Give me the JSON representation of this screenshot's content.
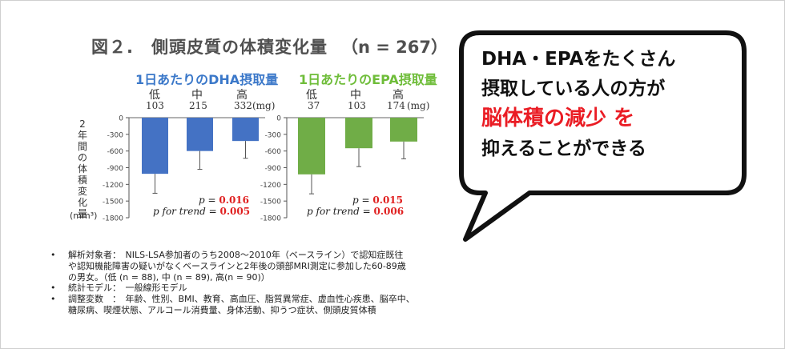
{
  "figure": {
    "title": "図２.　側頭皮質の体積変化量",
    "n_label": "（n = 267）"
  },
  "y_axis": {
    "label_chars": [
      "2",
      "年",
      "間",
      "の",
      "体",
      "積",
      "変",
      "化",
      "量"
    ],
    "unit": "(mm³)",
    "ticks": [
      "0",
      "-300",
      "-600",
      "-900",
      "-1200",
      "-1500",
      "-1800"
    ]
  },
  "chart_data": [
    {
      "type": "bar",
      "title": "1日あたりのDHA摂取量",
      "categories": [
        "低",
        "中",
        "高"
      ],
      "intakes": [
        "103",
        "215",
        "332"
      ],
      "intake_unit": "(mg)",
      "values": [
        -1010,
        -600,
        -420
      ],
      "errors": [
        350,
        330,
        310
      ],
      "ylabel": "2年間の体積変化量",
      "ylim": [
        -1800,
        0
      ],
      "color": "#4472c4",
      "stats": {
        "p_label": "p",
        "p_value": "0.016",
        "trend_label": "p for trend",
        "trend_value": "0.005"
      }
    },
    {
      "type": "bar",
      "title": "1日あたりのEPA摂取量",
      "categories": [
        "低",
        "中",
        "高"
      ],
      "intakes": [
        "37",
        "103",
        "174"
      ],
      "intake_unit": "(mg)",
      "values": [
        -1020,
        -550,
        -430
      ],
      "errors": [
        350,
        330,
        310
      ],
      "ylabel": "",
      "ylim": [
        -1800,
        0
      ],
      "color": "#70ad47",
      "stats": {
        "p_label": "p",
        "p_value": "0.015",
        "trend_label": "p for trend",
        "trend_value": "0.006"
      }
    }
  ],
  "bubble": {
    "line1": "DHA・EPAをたくさん",
    "line2": "摂取している人の方が",
    "line3_red": "脳体積の減少",
    "line3_rest": " を",
    "line4": "抑えることができる",
    "red_color": "#ea1c24"
  },
  "notes": {
    "bullet": "•",
    "items": [
      {
        "label": "解析対象者：",
        "lines": [
          "解析対象者：　NILS-LSA参加者のうち2008～2010年（ベースライン）で認知症既往",
          "や認知機能障害の疑いがなくベースラインと2年後の頭部MRI測定に参加した60-89歳",
          "の男女。（低 (n = 88), 中 (n = 89), 高(n = 90)）"
        ]
      },
      {
        "lines": [
          "統計モデル：　一般線形モデル"
        ]
      },
      {
        "lines": [
          "調整変数　：　年齢、性別、BMI、教育、高血圧、脂質異常症、虚血性心疾患、脳卒中、",
          "糖尿病、喫煙状態、アルコール消費量、身体活動、抑うつ症状、側頭皮質体積"
        ]
      }
    ]
  }
}
